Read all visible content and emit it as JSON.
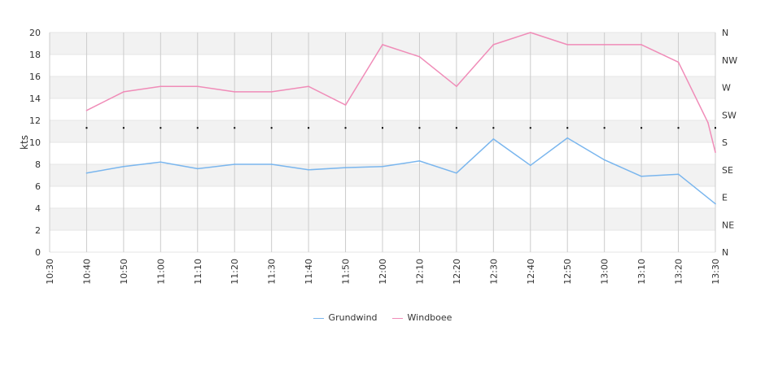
{
  "chart_data": {
    "type": "line",
    "ylabel": "kts",
    "ylim": [
      0,
      20
    ],
    "y_ticks": [
      "0",
      "2",
      "4",
      "6",
      "8",
      "10",
      "12",
      "14",
      "16",
      "18",
      "20"
    ],
    "x_ticks": [
      "10:30",
      "10:40",
      "10:50",
      "11:00",
      "11:10",
      "11:20",
      "11:30",
      "11:40",
      "11:50",
      "12:00",
      "12:10",
      "12:20",
      "12:30",
      "12:40",
      "12:50",
      "13:00",
      "13:10",
      "13:20",
      "13:30"
    ],
    "direction_ticks": [
      "N",
      "NW",
      "W",
      "SW",
      "S",
      "SE",
      "E",
      "NE",
      "N"
    ],
    "series": [
      {
        "name": "Grundwind",
        "color": "#7ab6ee",
        "points": [
          {
            "x": "10:40",
            "y": 7.2
          },
          {
            "x": "10:50",
            "y": 7.8
          },
          {
            "x": "11:00",
            "y": 8.2
          },
          {
            "x": "11:10",
            "y": 7.6
          },
          {
            "x": "11:20",
            "y": 8.0
          },
          {
            "x": "11:30",
            "y": 8.0
          },
          {
            "x": "11:40",
            "y": 7.5
          },
          {
            "x": "11:50",
            "y": 7.7
          },
          {
            "x": "12:00",
            "y": 7.8
          },
          {
            "x": "12:10",
            "y": 8.3
          },
          {
            "x": "12:20",
            "y": 7.2
          },
          {
            "x": "12:30",
            "y": 10.3
          },
          {
            "x": "12:40",
            "y": 7.9
          },
          {
            "x": "12:50",
            "y": 10.4
          },
          {
            "x": "13:00",
            "y": 8.4
          },
          {
            "x": "13:10",
            "y": 6.9
          },
          {
            "x": "13:20",
            "y": 7.1
          },
          {
            "x": "13:30",
            "y": 4.4
          }
        ]
      },
      {
        "name": "Windboee",
        "color": "#f08cb8",
        "points": [
          {
            "x": "10:40",
            "y": 12.9
          },
          {
            "x": "10:50",
            "y": 14.6
          },
          {
            "x": "11:00",
            "y": 15.1
          },
          {
            "x": "11:10",
            "y": 15.1
          },
          {
            "x": "11:20",
            "y": 14.6
          },
          {
            "x": "11:30",
            "y": 14.6
          },
          {
            "x": "11:40",
            "y": 15.1
          },
          {
            "x": "11:50",
            "y": 13.4
          },
          {
            "x": "12:00",
            "y": 18.9
          },
          {
            "x": "12:10",
            "y": 17.8
          },
          {
            "x": "12:20",
            "y": 15.1
          },
          {
            "x": "12:30",
            "y": 18.9
          },
          {
            "x": "12:40",
            "y": 20.0
          },
          {
            "x": "12:50",
            "y": 18.9
          },
          {
            "x": "13:00",
            "y": 18.9
          },
          {
            "x": "13:10",
            "y": 18.9
          },
          {
            "x": "13:20",
            "y": 17.3
          },
          {
            "x": "13:28",
            "y": 11.8
          },
          {
            "x": "13:30",
            "y": 9.1
          }
        ]
      }
    ],
    "direction_series": {
      "name": "wind direction",
      "color": "#000000",
      "points": [
        {
          "x": "10:40",
          "dir": "SW"
        },
        {
          "x": "10:50",
          "dir": "SW"
        },
        {
          "x": "11:00",
          "dir": "SW"
        },
        {
          "x": "11:10",
          "dir": "SW"
        },
        {
          "x": "11:20",
          "dir": "SW"
        },
        {
          "x": "11:30",
          "dir": "SW"
        },
        {
          "x": "11:40",
          "dir": "SW"
        },
        {
          "x": "11:50",
          "dir": "SW"
        },
        {
          "x": "12:00",
          "dir": "SW"
        },
        {
          "x": "12:10",
          "dir": "SW"
        },
        {
          "x": "12:20",
          "dir": "SW"
        },
        {
          "x": "12:30",
          "dir": "SW"
        },
        {
          "x": "12:40",
          "dir": "SW"
        },
        {
          "x": "12:50",
          "dir": "SW"
        },
        {
          "x": "13:00",
          "dir": "SW"
        },
        {
          "x": "13:10",
          "dir": "SW"
        },
        {
          "x": "13:20",
          "dir": "SW"
        },
        {
          "x": "13:30",
          "dir": "SW"
        }
      ]
    },
    "grid": true,
    "legend_position": "bottom-center"
  }
}
